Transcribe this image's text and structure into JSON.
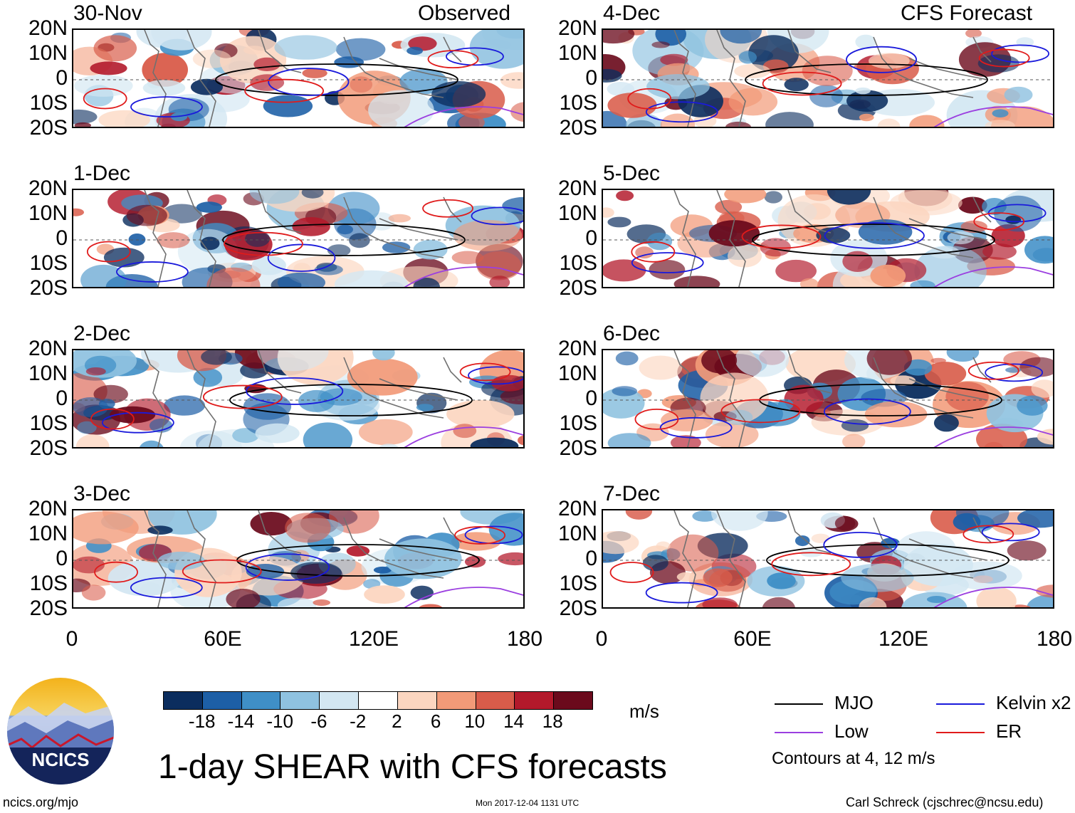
{
  "chart_data": {
    "type": "heatmap",
    "title": "1-day SHEAR with CFS forecasts",
    "variable": "wind shear anomaly",
    "units": "m/s",
    "left_column_header": "Observed",
    "right_column_header": "CFS Forecast",
    "x_axis": {
      "range": [
        0,
        180
      ],
      "ticks": [
        "0",
        "60E",
        "120E",
        "180"
      ]
    },
    "y_axis": {
      "range": [
        -20,
        20
      ],
      "ticks": [
        "20N",
        "10N",
        "0",
        "10S",
        "20S"
      ]
    },
    "panels": [
      {
        "date": "30-Nov",
        "kind": "observed"
      },
      {
        "date": "1-Dec",
        "kind": "observed"
      },
      {
        "date": "2-Dec",
        "kind": "observed"
      },
      {
        "date": "3-Dec",
        "kind": "observed"
      },
      {
        "date": "4-Dec",
        "kind": "forecast"
      },
      {
        "date": "5-Dec",
        "kind": "forecast"
      },
      {
        "date": "6-Dec",
        "kind": "forecast"
      },
      {
        "date": "7-Dec",
        "kind": "forecast"
      }
    ],
    "colorbar": {
      "levels": [
        "-18",
        "-14",
        "-10",
        "-6",
        "-2",
        "2",
        "6",
        "10",
        "14",
        "18"
      ],
      "colors": [
        "#0b2d5e",
        "#1d5fa6",
        "#3f8fc7",
        "#8fc2e0",
        "#d3e7f2",
        "#ffffff",
        "#fcd6c0",
        "#f29a78",
        "#d95c4a",
        "#b3192b",
        "#6b0a1c"
      ]
    },
    "contour_legend": [
      {
        "label": "MJO",
        "color": "#000000"
      },
      {
        "label": "Kelvin x2",
        "color": "#1a1adb"
      },
      {
        "label": "Low",
        "color": "#9b3fe0"
      },
      {
        "label": "ER",
        "color": "#e01b1b"
      }
    ],
    "contour_note": "Contours at 4, 12 m/s"
  },
  "footer": {
    "logo_text": "NCICS",
    "website": "ncics.org/mjo",
    "timestamp": "Mon 2017-12-04 1131 UTC",
    "author": "Carl Schreck (cjschrec@ncsu.edu)"
  }
}
